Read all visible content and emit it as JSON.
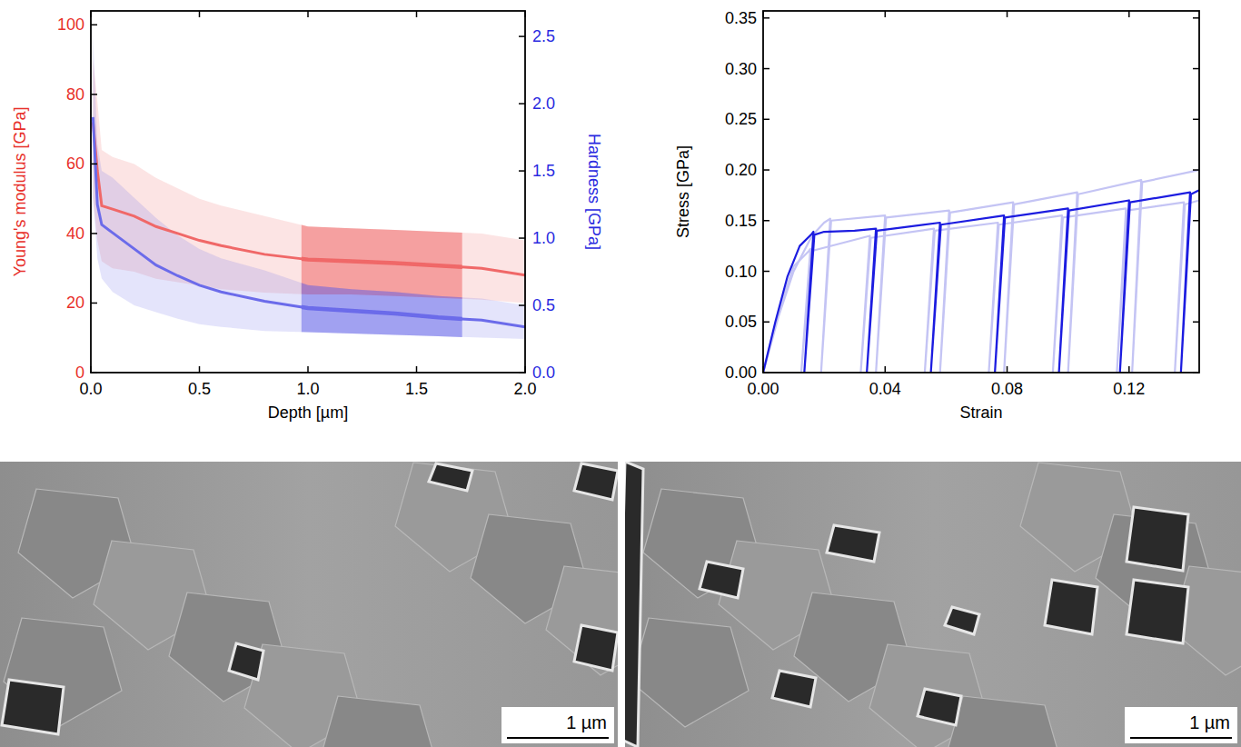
{
  "chart_data": [
    {
      "type": "line",
      "x_label": "Depth [µm]",
      "y_label": "Young's modulus [GPa]",
      "y2_label": "Hardness [GPa]",
      "grid": false,
      "xlim": [
        0,
        2
      ],
      "xticks": [
        {
          "value": 0,
          "label": "0.0"
        },
        {
          "value": 0.5,
          "label": "0.5"
        },
        {
          "value": 1,
          "label": "1.0"
        },
        {
          "value": 1.5,
          "label": "1.5"
        },
        {
          "value": 2,
          "label": "2.0"
        }
      ],
      "ylim": [
        0,
        104
      ],
      "yticks": [
        0,
        20,
        40,
        60,
        80,
        100
      ],
      "y2lim": [
        0,
        2.69
      ],
      "y2ticks": [
        {
          "value": 0,
          "label": "0.0"
        },
        {
          "value": 0.5,
          "label": "0.5"
        },
        {
          "value": 1,
          "label": "1.0"
        },
        {
          "value": 1.5,
          "label": "1.5"
        },
        {
          "value": 2,
          "label": "2.0"
        },
        {
          "value": 2.5,
          "label": "2.5"
        }
      ],
      "highlight": [
        0.97,
        1.71
      ],
      "x": [
        0.01,
        0.03,
        0.05,
        0.1,
        0.2,
        0.3,
        0.4,
        0.5,
        0.6,
        0.8,
        1.0,
        1.2,
        1.4,
        1.6,
        1.8,
        2.0
      ],
      "series": [
        {
          "color": "#f06868",
          "values": [
            72,
            58,
            48,
            47,
            45,
            42,
            40,
            38,
            36.5,
            34,
            32.5,
            32,
            31.5,
            30.8,
            30,
            28
          ],
          "lower": [
            50,
            38,
            32,
            30,
            29,
            27,
            26,
            25,
            24,
            23,
            22.5,
            22.5,
            22,
            21.5,
            21,
            20
          ],
          "upper": [
            90,
            78,
            64,
            62,
            60,
            56,
            53,
            50,
            48,
            45,
            42,
            41.5,
            41,
            40.5,
            40,
            38
          ]
        },
        {
          "color": "#6b6bea",
          "axis": "y2",
          "values": [
            1.9,
            1.25,
            1.1,
            1.04,
            0.92,
            0.8,
            0.72,
            0.65,
            0.6,
            0.53,
            0.48,
            0.46,
            0.44,
            0.41,
            0.39,
            0.34
          ],
          "lower": [
            1.3,
            0.85,
            0.7,
            0.6,
            0.5,
            0.45,
            0.4,
            0.36,
            0.34,
            0.31,
            0.3,
            0.29,
            0.28,
            0.27,
            0.26,
            0.25
          ],
          "upper": [
            2.5,
            1.7,
            1.5,
            1.45,
            1.3,
            1.15,
            1.02,
            0.92,
            0.85,
            0.76,
            0.65,
            0.62,
            0.6,
            0.57,
            0.55,
            0.5
          ]
        }
      ]
    },
    {
      "type": "line",
      "x_label": "Strain",
      "y_label": "Stress [GPa]",
      "grid": false,
      "xlim": [
        0,
        0.143
      ],
      "xticks": [
        {
          "value": 0,
          "label": "0.00"
        },
        {
          "value": 0.04,
          "label": "0.04"
        },
        {
          "value": 0.08,
          "label": "0.08"
        },
        {
          "value": 0.12,
          "label": "0.12"
        }
      ],
      "ylim": [
        0,
        0.357
      ],
      "yticks": [
        {
          "value": 0,
          "label": "0.00"
        },
        {
          "value": 0.05,
          "label": "0.05"
        },
        {
          "value": 0.1,
          "label": "0.10"
        },
        {
          "value": 0.15,
          "label": "0.15"
        },
        {
          "value": 0.2,
          "label": "0.20"
        },
        {
          "value": 0.25,
          "label": "0.25"
        },
        {
          "value": 0.3,
          "label": "0.30"
        },
        {
          "value": 0.35,
          "label": "0.35"
        }
      ],
      "series": [
        {
          "color": "#c4c4f4",
          "x": [
            0,
            0.005,
            0.01,
            0.015,
            0.0155,
            0.0125,
            0.0158,
            0.035,
            0.032,
            0.0353,
            0.056,
            0.053,
            0.0563,
            0.077,
            0.074,
            0.0773,
            0.098,
            0.095,
            0.0983,
            0.119,
            0.116,
            0.1193,
            0.138,
            0.135,
            0.1383,
            0.143
          ],
          "values": [
            0,
            0.06,
            0.105,
            0.12,
            0.122,
            0,
            0.12,
            0.135,
            0,
            0.133,
            0.142,
            0,
            0.14,
            0.148,
            0,
            0.146,
            0.155,
            0,
            0.153,
            0.162,
            0,
            0.16,
            0.168,
            0,
            0.166,
            0.17
          ]
        },
        {
          "color": "#c4c4f4",
          "x": [
            0,
            0.005,
            0.01,
            0.016,
            0.02,
            0.022,
            0.019,
            0.0223,
            0.04,
            0.037,
            0.0403,
            0.061,
            0.058,
            0.0613,
            0.082,
            0.079,
            0.0823,
            0.103,
            0.1,
            0.1033,
            0.124,
            0.121,
            0.1243,
            0.143
          ],
          "values": [
            0,
            0.055,
            0.1,
            0.135,
            0.148,
            0.152,
            0,
            0.15,
            0.155,
            0,
            0.153,
            0.16,
            0,
            0.158,
            0.168,
            0,
            0.166,
            0.178,
            0,
            0.176,
            0.19,
            0,
            0.188,
            0.2
          ]
        },
        {
          "color": "#1c1ce0",
          "x": [
            0,
            0.004,
            0.008,
            0.012,
            0.016,
            0.0165,
            0.0135,
            0.0168,
            0.02,
            0.03,
            0.037,
            0.034,
            0.0373,
            0.058,
            0.055,
            0.0583,
            0.079,
            0.076,
            0.0793,
            0.1,
            0.097,
            0.1003,
            0.12,
            0.117,
            0.1203,
            0.14,
            0.137,
            0.1403,
            0.143
          ],
          "values": [
            0,
            0.05,
            0.095,
            0.125,
            0.137,
            0.139,
            0,
            0.136,
            0.139,
            0.14,
            0.142,
            0,
            0.14,
            0.148,
            0,
            0.146,
            0.155,
            0,
            0.153,
            0.162,
            0,
            0.16,
            0.17,
            0,
            0.168,
            0.178,
            0,
            0.176,
            0.18
          ]
        }
      ]
    }
  ],
  "images": [
    {
      "scale_bar": "1 µm"
    },
    {
      "scale_bar": "1 µm"
    }
  ]
}
